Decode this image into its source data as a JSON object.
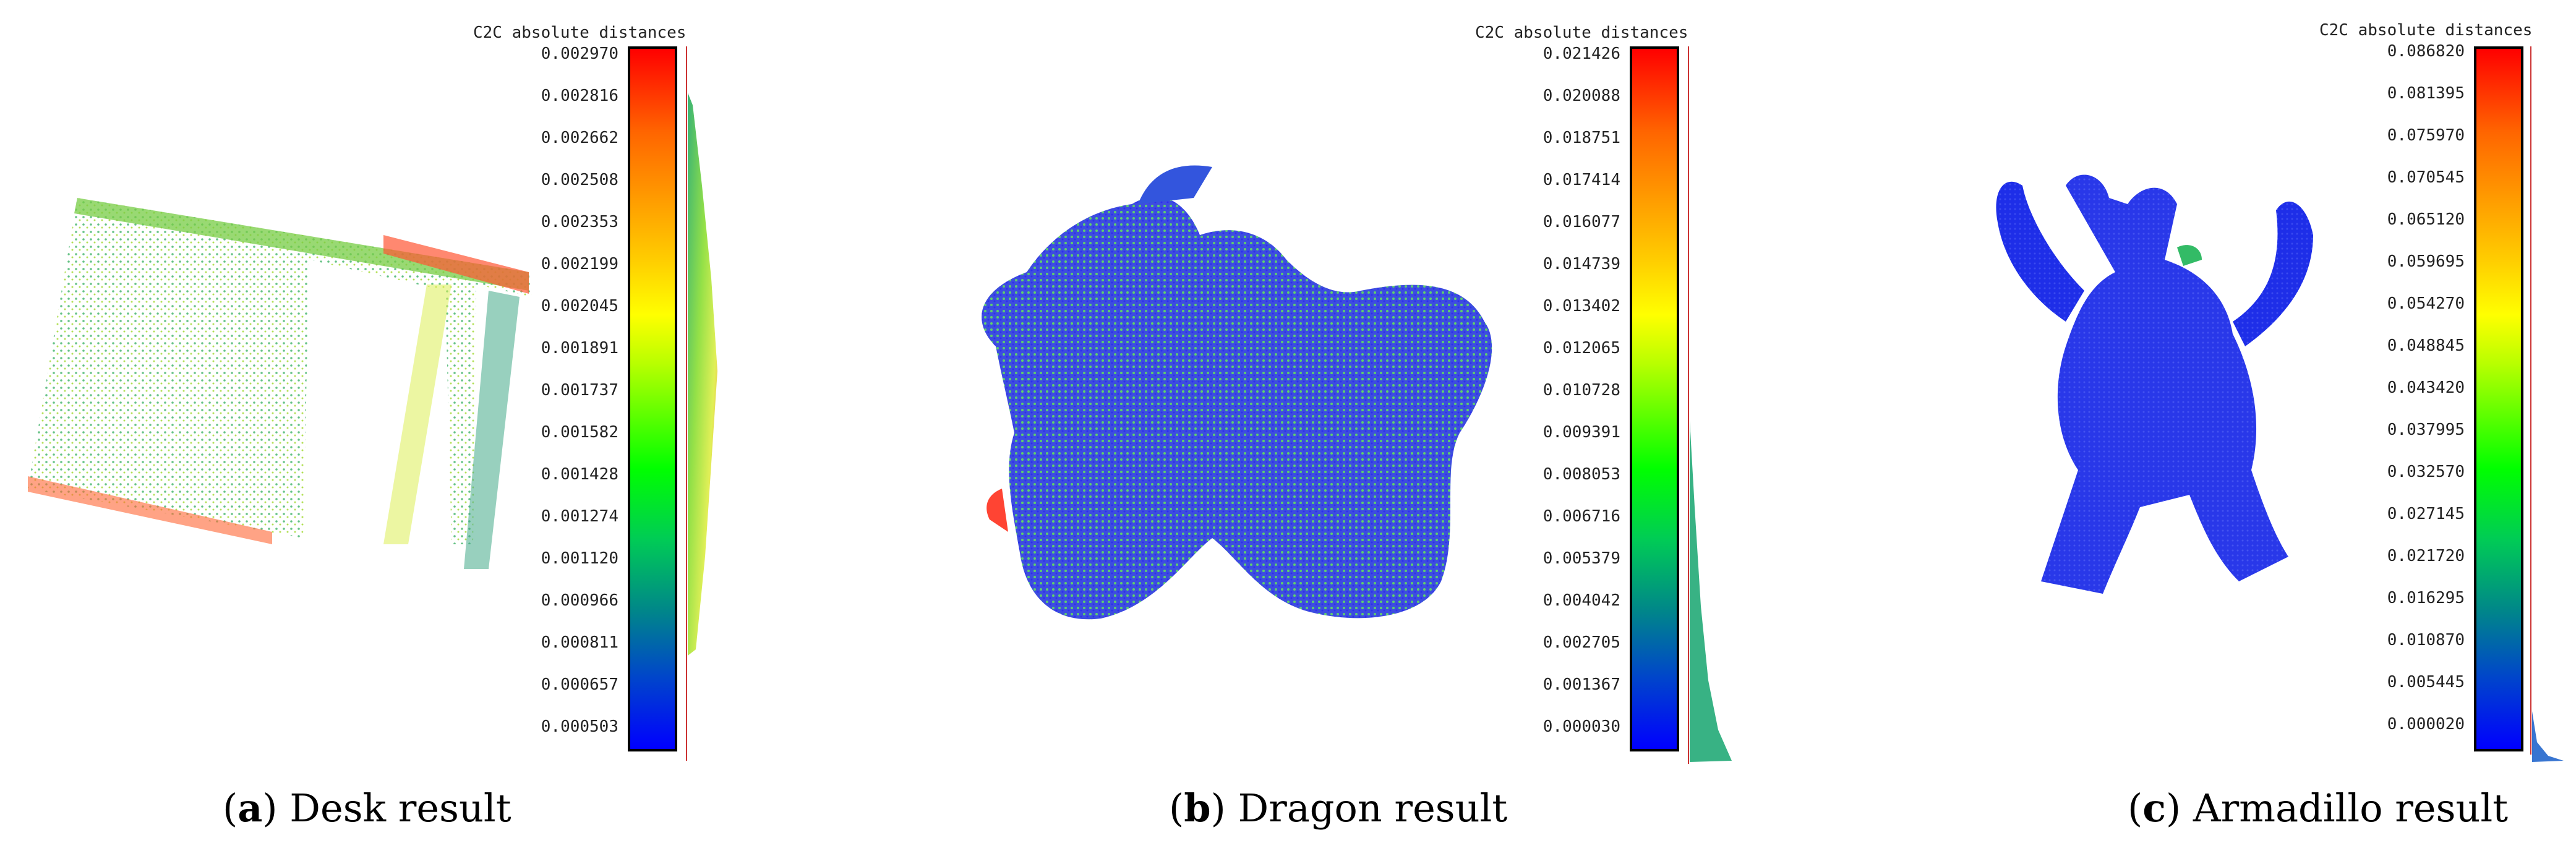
{
  "panels": [
    {
      "id": "a",
      "colorbar_title": "C2C absolute distances",
      "ticks": [
        "0.002970",
        "0.002816",
        "0.002662",
        "0.002508",
        "0.002353",
        "0.002199",
        "0.002045",
        "0.001891",
        "0.001737",
        "0.001582",
        "0.001428",
        "0.001274",
        "0.001120",
        "0.000966",
        "0.000811",
        "0.000657",
        "0.000503"
      ],
      "caption_label": "a",
      "caption_text": "Desk result",
      "subject": "desk"
    },
    {
      "id": "b",
      "colorbar_title": "C2C absolute distances",
      "ticks": [
        "0.021426",
        "0.020088",
        "0.018751",
        "0.017414",
        "0.016077",
        "0.014739",
        "0.013402",
        "0.012065",
        "0.010728",
        "0.009391",
        "0.008053",
        "0.006716",
        "0.005379",
        "0.004042",
        "0.002705",
        "0.001367",
        "0.000030"
      ],
      "caption_label": "b",
      "caption_text": "Dragon result",
      "subject": "dragon"
    },
    {
      "id": "c",
      "colorbar_title": "C2C absolute distances",
      "ticks": [
        "0.086820",
        "0.081395",
        "0.075970",
        "0.070545",
        "0.065120",
        "0.059695",
        "0.054270",
        "0.048845",
        "0.043420",
        "0.037995",
        "0.032570",
        "0.027145",
        "0.021720",
        "0.016295",
        "0.010870",
        "0.005445",
        "0.000020"
      ],
      "caption_label": "c",
      "caption_text": "Armadillo result",
      "subject": "armadillo"
    }
  ]
}
